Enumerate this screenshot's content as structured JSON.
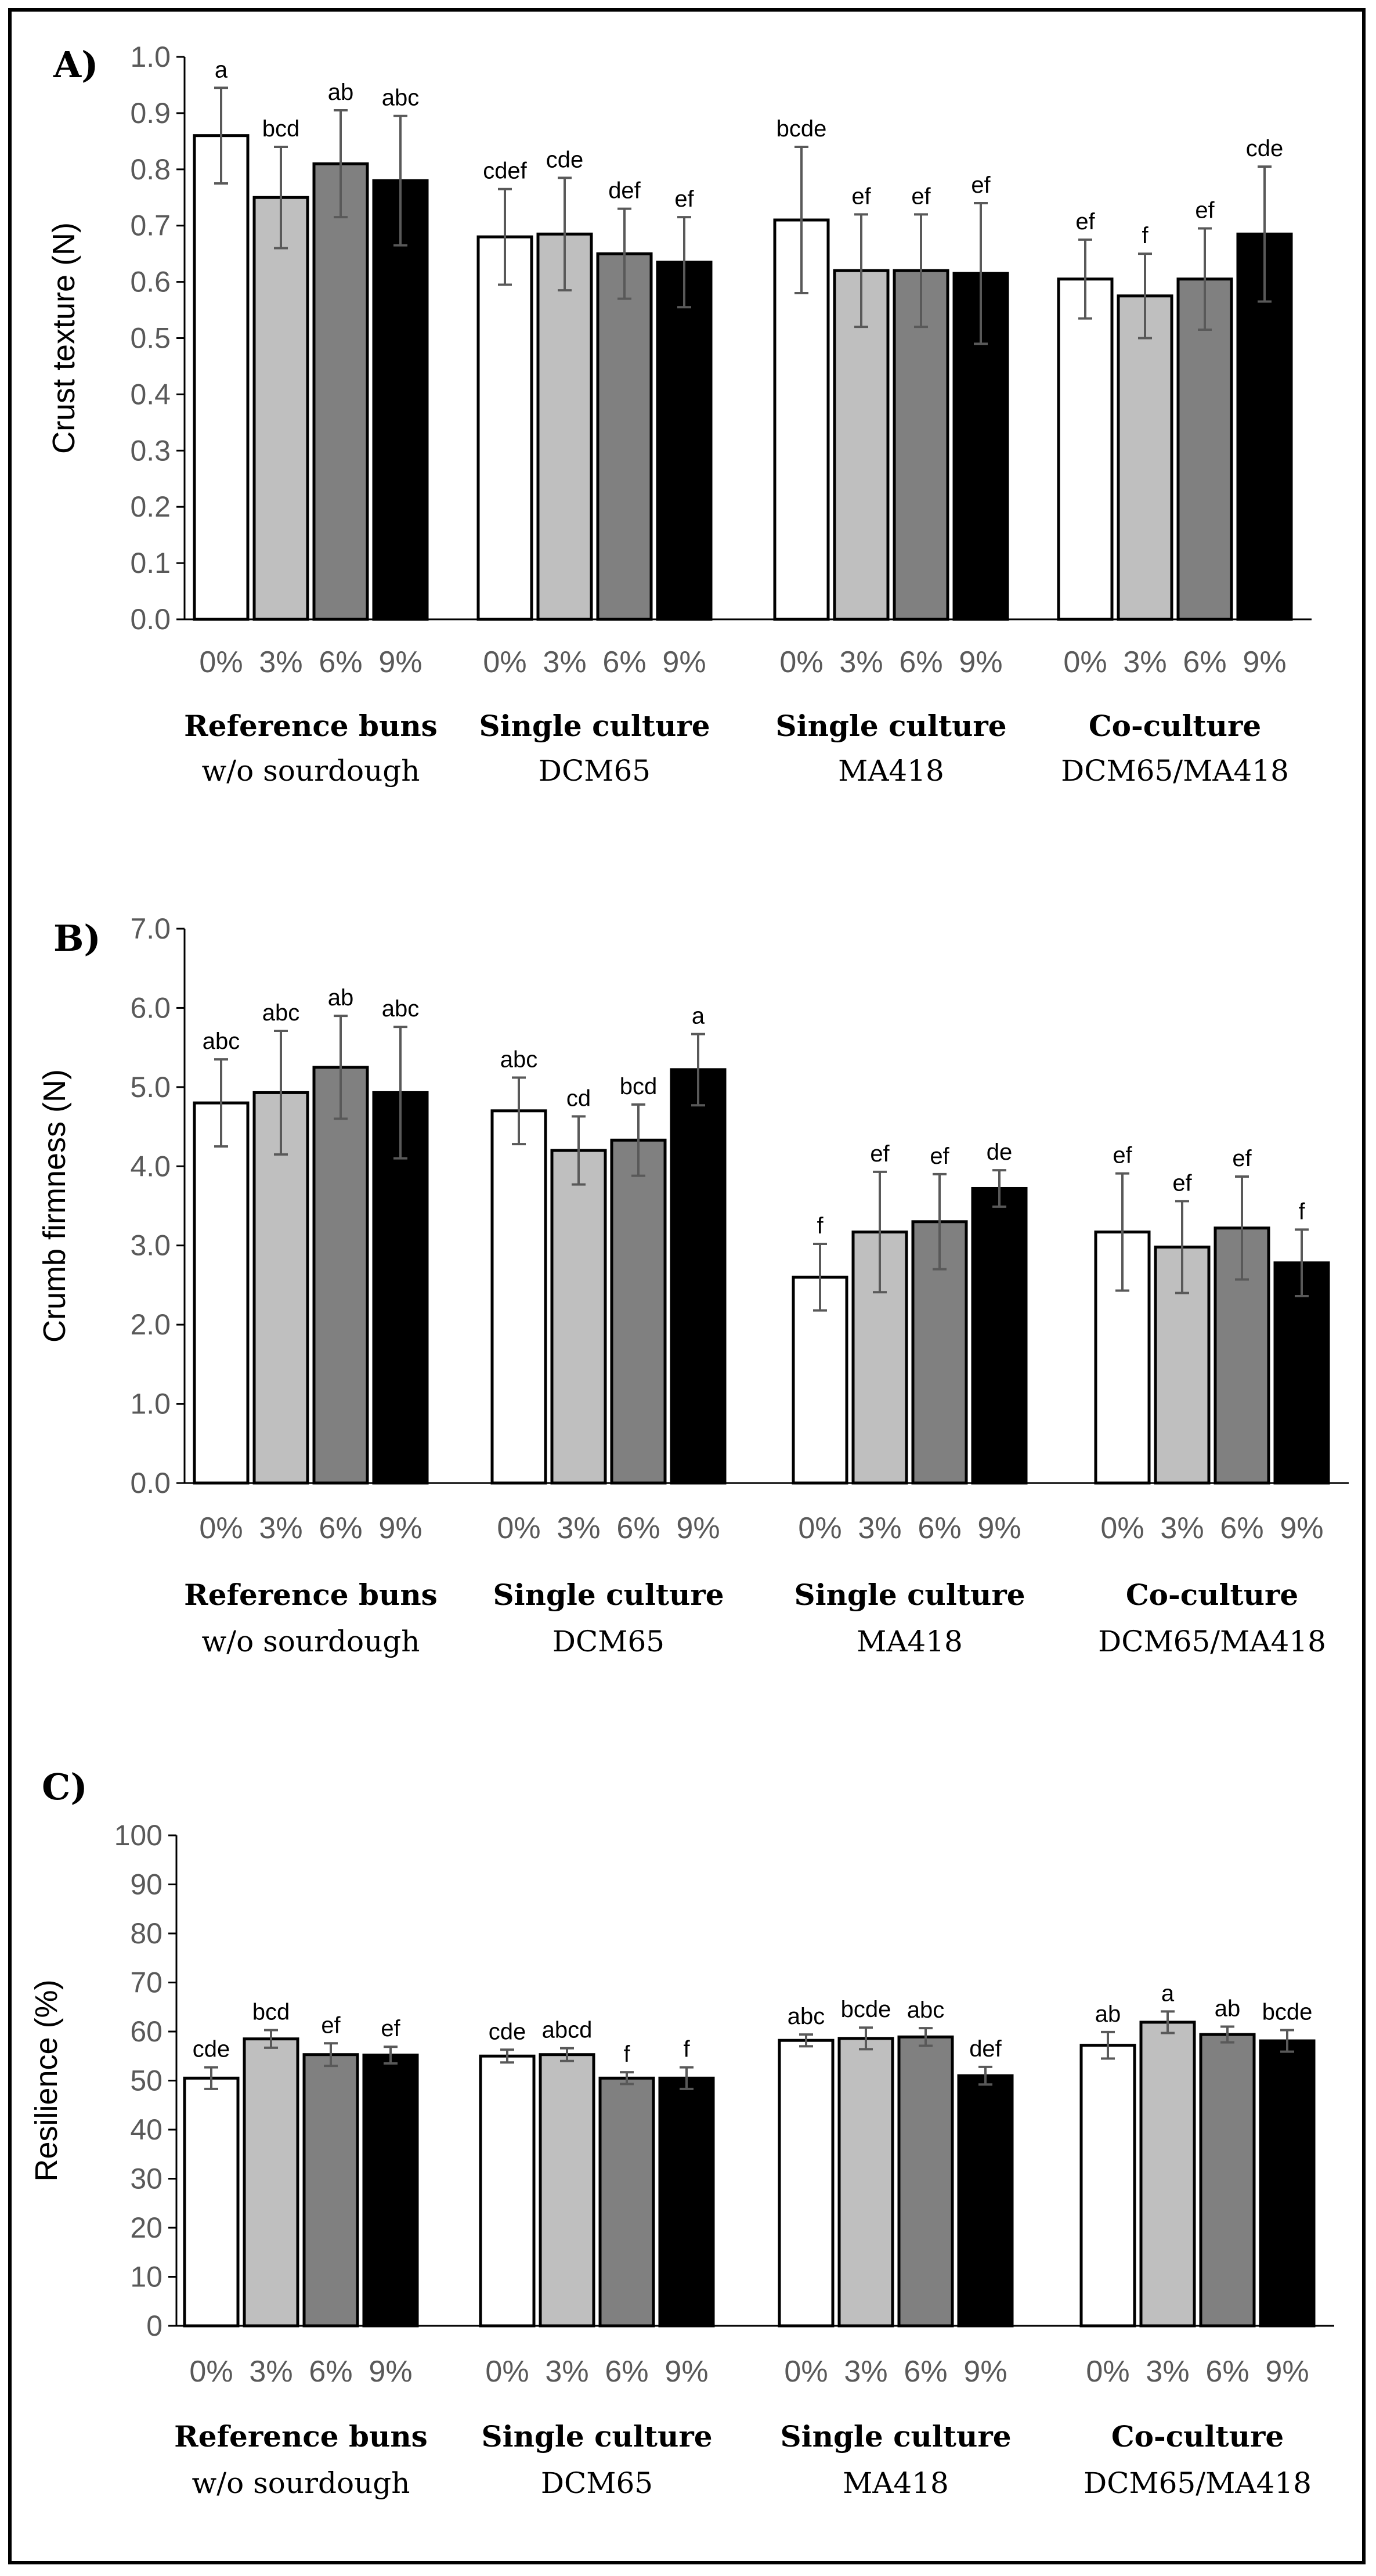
{
  "colors": {
    "concentration_fills": [
      "#ffffff",
      "#bfbfbf",
      "#808080",
      "#000000"
    ],
    "bar_stroke": "#000000",
    "error_bar": "#595959",
    "axis": "#000000",
    "tick_label": "#595959"
  },
  "x_categories": [
    "0%",
    "3%",
    "6%",
    "9%"
  ],
  "groups": [
    {
      "title": "Reference buns",
      "subtitle": "w/o sourdough"
    },
    {
      "title": "Single culture",
      "subtitle": "DCM65"
    },
    {
      "title": "Single culture",
      "subtitle": "MA418"
    },
    {
      "title": "Co-culture",
      "subtitle": "DCM65/MA418"
    }
  ],
  "chart_data": [
    {
      "type": "bar",
      "panel": "A)",
      "ylabel": "Crust texture (N)",
      "ylim": [
        0,
        1.0
      ],
      "ytick_step": 0.1,
      "ytick_decimals": 1,
      "categories": [
        "0%",
        "3%",
        "6%",
        "9%"
      ],
      "series": [
        {
          "name": "Reference buns w/o sourdough",
          "values": [
            0.86,
            0.75,
            0.81,
            0.78
          ],
          "errors": [
            0.085,
            0.09,
            0.095,
            0.115
          ],
          "letters": [
            "a",
            "bcd",
            "ab",
            "abc"
          ]
        },
        {
          "name": "Single culture DCM65",
          "values": [
            0.68,
            0.685,
            0.65,
            0.635
          ],
          "errors": [
            0.085,
            0.1,
            0.08,
            0.08
          ],
          "letters": [
            "cdef",
            "cde",
            "def",
            "ef"
          ]
        },
        {
          "name": "Single culture MA418",
          "values": [
            0.71,
            0.62,
            0.62,
            0.615
          ],
          "errors": [
            0.13,
            0.1,
            0.1,
            0.125
          ],
          "letters": [
            "bcde",
            "ef",
            "ef",
            "ef"
          ]
        },
        {
          "name": "Co-culture DCM65/MA418",
          "values": [
            0.605,
            0.575,
            0.605,
            0.685
          ],
          "errors": [
            0.07,
            0.075,
            0.09,
            0.12
          ],
          "letters": [
            "ef",
            "f",
            "ef",
            "cde"
          ]
        }
      ]
    },
    {
      "type": "bar",
      "panel": "B)",
      "ylabel": "Crumb firmness (N)",
      "ylim": [
        0,
        7.0
      ],
      "ytick_step": 1.0,
      "ytick_decimals": 1,
      "categories": [
        "0%",
        "3%",
        "6%",
        "9%"
      ],
      "series": [
        {
          "name": "Reference buns w/o sourdough",
          "values": [
            4.8,
            4.93,
            5.25,
            4.93
          ],
          "errors": [
            0.55,
            0.78,
            0.65,
            0.83
          ],
          "letters": [
            "abc",
            "abc",
            "ab",
            "abc"
          ]
        },
        {
          "name": "Single culture DCM65",
          "values": [
            4.7,
            4.2,
            4.33,
            5.22
          ],
          "errors": [
            0.42,
            0.43,
            0.45,
            0.45
          ],
          "letters": [
            "abc",
            "cd",
            "bcd",
            "a"
          ]
        },
        {
          "name": "Single culture MA418",
          "values": [
            2.6,
            3.17,
            3.3,
            3.72
          ],
          "errors": [
            0.42,
            0.76,
            0.6,
            0.23
          ],
          "letters": [
            "f",
            "ef",
            "ef",
            "de"
          ]
        },
        {
          "name": "Co-culture DCM65/MA418",
          "values": [
            3.17,
            2.98,
            3.22,
            2.78
          ],
          "errors": [
            0.74,
            0.58,
            0.65,
            0.42
          ],
          "letters": [
            "ef",
            "ef",
            "ef",
            "f"
          ]
        }
      ]
    },
    {
      "type": "bar",
      "panel": "C)",
      "ylabel": "Resilience (%)",
      "ylim": [
        0,
        100
      ],
      "ytick_step": 10,
      "ytick_decimals": 0,
      "categories": [
        "0%",
        "3%",
        "6%",
        "9%"
      ],
      "series": [
        {
          "name": "Reference buns w/o sourdough",
          "values": [
            50.5,
            58.5,
            55.3,
            55.2
          ],
          "errors": [
            2.2,
            1.8,
            2.3,
            1.7
          ],
          "letters": [
            "cde",
            "bcd",
            "ef",
            "ef"
          ]
        },
        {
          "name": "Single culture DCM65",
          "values": [
            55.0,
            55.3,
            50.5,
            50.5
          ],
          "errors": [
            1.3,
            1.3,
            1.2,
            2.2
          ],
          "letters": [
            "cde",
            "abcd",
            "f",
            "f"
          ]
        },
        {
          "name": "Single culture MA418",
          "values": [
            58.2,
            58.6,
            58.9,
            51.0
          ],
          "errors": [
            1.2,
            2.2,
            1.8,
            1.8
          ],
          "letters": [
            "abc",
            "bcde",
            "abc",
            "def"
          ]
        },
        {
          "name": "Co-culture DCM65/MA418",
          "values": [
            57.2,
            61.9,
            59.4,
            58.1
          ],
          "errors": [
            2.7,
            2.2,
            1.6,
            2.2
          ],
          "letters": [
            "ab",
            "a",
            "ab",
            "bcde"
          ]
        }
      ]
    }
  ]
}
